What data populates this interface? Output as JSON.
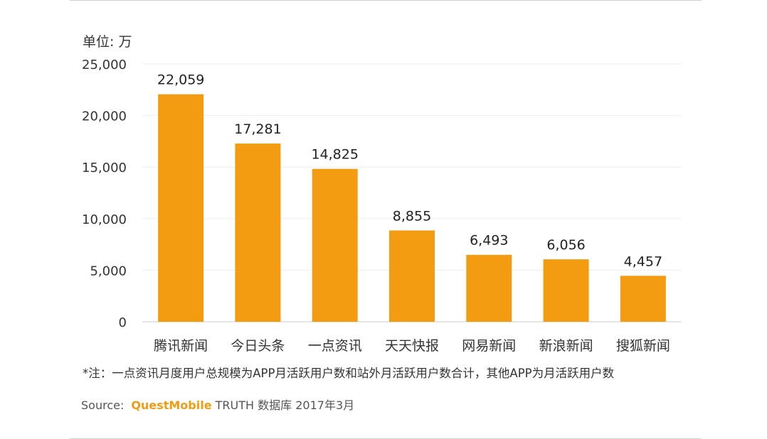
{
  "unit_label": "单位: 万",
  "note": "*注：一点资讯月度用户总规模为APP月活跃用户数和站外月活跃用户数合计，其他APP为月活跃用户数",
  "source": {
    "label": "Source:",
    "brand": "QuestMobile",
    "rest": "TRUTH 数据库 2017年3月"
  },
  "colors": {
    "bar": "#f39c12",
    "grid": "#eeeeee",
    "axis": "#cccccc"
  },
  "chart_data": {
    "type": "bar",
    "title": "",
    "xlabel": "",
    "ylabel": "",
    "categories": [
      "腾讯新闻",
      "今日头条",
      "一点资讯",
      "天天快报",
      "网易新闻",
      "新浪新闻",
      "搜狐新闻"
    ],
    "values": [
      22059,
      17281,
      14825,
      8855,
      6493,
      6056,
      4457
    ],
    "value_labels": [
      "22,059",
      "17,281",
      "14,825",
      "8,855",
      "6,493",
      "6,056",
      "4,457"
    ],
    "ylim": [
      0,
      25000
    ],
    "yticks": [
      0,
      5000,
      10000,
      15000,
      20000,
      25000
    ],
    "ytick_labels": [
      "0",
      "5,000",
      "10,000",
      "15,000",
      "20,000",
      "25,000"
    ],
    "grid": true,
    "legend": "none"
  }
}
